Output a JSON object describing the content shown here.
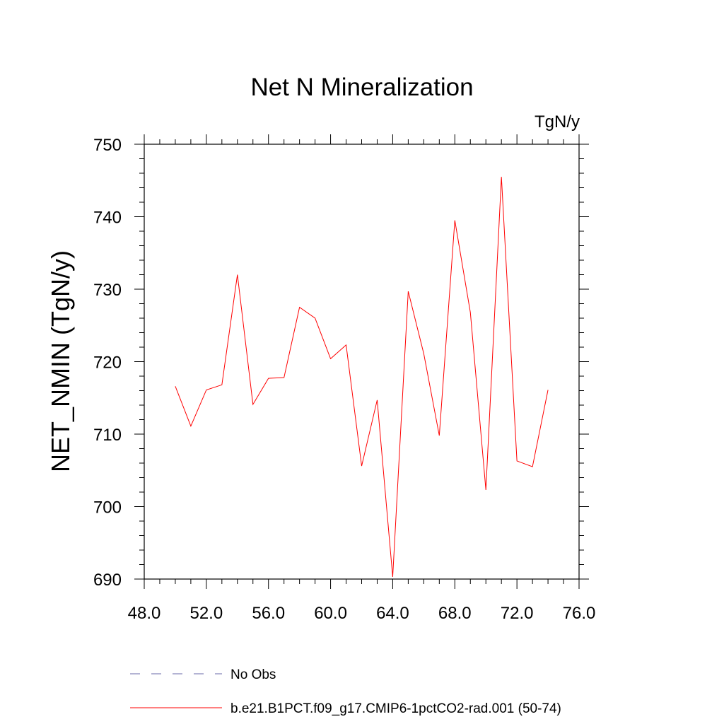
{
  "chart_data": {
    "type": "line",
    "title": "Net N Mineralization",
    "units_label": "TgN/y",
    "ylabel": "NET_NMIN  (TgN/y)",
    "xlabel": "",
    "xlim": [
      48,
      76
    ],
    "ylim": [
      690,
      750
    ],
    "xticks": [
      48,
      52,
      56,
      60,
      64,
      68,
      72,
      76
    ],
    "xtick_labels": [
      "48.0",
      "52.0",
      "56.0",
      "60.0",
      "64.0",
      "68.0",
      "72.0",
      "76.0"
    ],
    "yticks": [
      690,
      700,
      710,
      720,
      730,
      740,
      750
    ],
    "ytick_labels": [
      "690",
      "700",
      "710",
      "720",
      "730",
      "740",
      "750"
    ],
    "grid": false,
    "legend_position": "bottom",
    "series": [
      {
        "name": "b.e21.B1PCT.f09_g17.CMIP6-1pctCO2-rad.001 (50-74)",
        "color": "#ff0000",
        "style": "solid",
        "x": [
          50,
          51,
          52,
          53,
          54,
          55,
          56,
          57,
          58,
          59,
          60,
          61,
          62,
          63,
          64,
          65,
          66,
          67,
          68,
          69,
          70,
          71,
          72,
          73,
          74
        ],
        "y": [
          716.6,
          711.1,
          716.1,
          716.8,
          732.0,
          714.1,
          717.7,
          717.8,
          727.5,
          726.0,
          720.4,
          722.3,
          705.6,
          714.7,
          690.3,
          729.7,
          721.1,
          709.8,
          739.5,
          726.8,
          702.3,
          745.5,
          706.3,
          705.5,
          716.1
        ]
      }
    ],
    "legend": [
      {
        "label": "No Obs",
        "color": "#6a6aaa",
        "style": "dashed"
      },
      {
        "label": "b.e21.B1PCT.f09_g17.CMIP6-1pctCO2-rad.001 (50-74)",
        "color": "#ff0000",
        "style": "solid"
      }
    ]
  }
}
